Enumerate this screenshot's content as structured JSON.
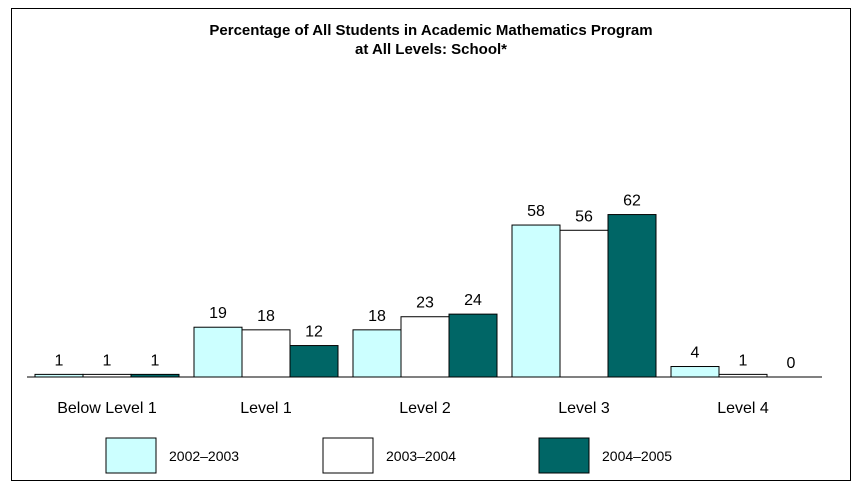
{
  "chart_data": {
    "type": "bar",
    "title": "Percentage of All Students in Academic Mathematics Program",
    "subtitle": "at All Levels: School*",
    "categories": [
      "Below Level 1",
      "Level 1",
      "Level 2",
      "Level 3",
      "Level 4"
    ],
    "series": [
      {
        "name": "2002–2003",
        "color": "#ccffff",
        "values": [
          1,
          19,
          18,
          58,
          4
        ]
      },
      {
        "name": "2003–2004",
        "color": "#ffffff",
        "values": [
          1,
          18,
          23,
          56,
          1
        ]
      },
      {
        "name": "2004–2005",
        "color": "#006666",
        "values": [
          1,
          12,
          24,
          62,
          0
        ]
      }
    ],
    "ylim": [
      0,
      100
    ],
    "grid": false,
    "legend_position": "bottom"
  }
}
